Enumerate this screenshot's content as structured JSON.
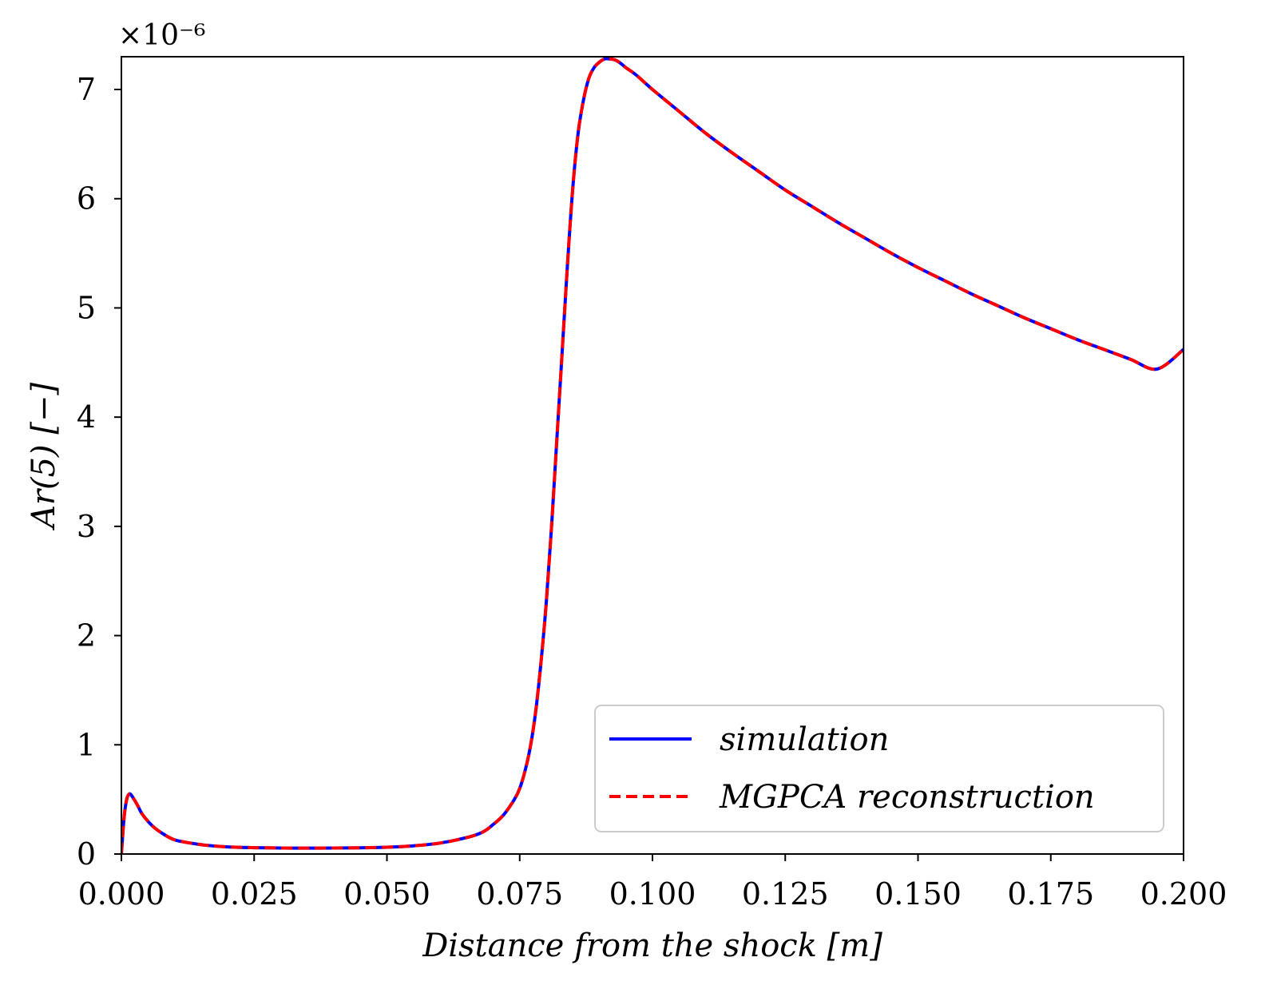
{
  "chart_data": {
    "type": "line",
    "title": "",
    "xlabel": "Distance from the shock [m]",
    "ylabel": "Ar(5) [−]",
    "y_offset_label": "×10⁻⁶",
    "xlim": [
      0.0,
      0.2
    ],
    "ylim": [
      0,
      7.3
    ],
    "grid": false,
    "legend_position": "lower-right",
    "x_ticks": [
      0.0,
      0.025,
      0.05,
      0.075,
      0.1,
      0.125,
      0.15,
      0.175,
      0.2
    ],
    "x_tick_labels": [
      "0.000",
      "0.025",
      "0.050",
      "0.075",
      "0.100",
      "0.125",
      "0.150",
      "0.175",
      "0.200"
    ],
    "y_ticks": [
      0,
      1,
      2,
      3,
      4,
      5,
      6,
      7
    ],
    "y_tick_labels": [
      "0",
      "1",
      "2",
      "3",
      "4",
      "5",
      "6",
      "7"
    ],
    "x": [
      0.0,
      0.0005,
      0.001,
      0.0015,
      0.002,
      0.003,
      0.004,
      0.006,
      0.008,
      0.01,
      0.013,
      0.016,
      0.02,
      0.025,
      0.03,
      0.035,
      0.04,
      0.045,
      0.05,
      0.055,
      0.06,
      0.065,
      0.068,
      0.07,
      0.072,
      0.074,
      0.075,
      0.076,
      0.077,
      0.078,
      0.079,
      0.08,
      0.081,
      0.082,
      0.083,
      0.084,
      0.085,
      0.086,
      0.087,
      0.088,
      0.089,
      0.09,
      0.091,
      0.092,
      0.093,
      0.094,
      0.095,
      0.097,
      0.1,
      0.105,
      0.11,
      0.115,
      0.12,
      0.125,
      0.13,
      0.135,
      0.14,
      0.145,
      0.15,
      0.155,
      0.16,
      0.165,
      0.17,
      0.175,
      0.18,
      0.185,
      0.19,
      0.195,
      0.2
    ],
    "series": [
      {
        "name": "simulation",
        "color": "#0000ff",
        "style": "solid",
        "values": [
          0.0,
          0.33,
          0.5,
          0.55,
          0.53,
          0.45,
          0.36,
          0.25,
          0.18,
          0.13,
          0.1,
          0.08,
          0.065,
          0.058,
          0.055,
          0.054,
          0.055,
          0.057,
          0.062,
          0.075,
          0.1,
          0.15,
          0.2,
          0.27,
          0.36,
          0.5,
          0.6,
          0.76,
          0.98,
          1.3,
          1.75,
          2.3,
          3.0,
          3.8,
          4.6,
          5.4,
          6.1,
          6.6,
          6.9,
          7.1,
          7.2,
          7.25,
          7.28,
          7.28,
          7.27,
          7.24,
          7.2,
          7.13,
          7.0,
          6.8,
          6.6,
          6.42,
          6.25,
          6.08,
          5.93,
          5.78,
          5.64,
          5.5,
          5.37,
          5.25,
          5.13,
          5.02,
          4.91,
          4.81,
          4.71,
          4.62,
          4.53,
          4.44,
          4.62
        ]
      },
      {
        "name": "MGPCA reconstruction",
        "color": "#ff0000",
        "style": "dashed",
        "values": [
          0.0,
          0.33,
          0.5,
          0.55,
          0.53,
          0.45,
          0.36,
          0.25,
          0.18,
          0.13,
          0.1,
          0.08,
          0.065,
          0.058,
          0.055,
          0.054,
          0.055,
          0.057,
          0.062,
          0.075,
          0.1,
          0.15,
          0.2,
          0.27,
          0.36,
          0.5,
          0.6,
          0.76,
          0.98,
          1.3,
          1.75,
          2.3,
          3.0,
          3.8,
          4.6,
          5.4,
          6.1,
          6.6,
          6.9,
          7.1,
          7.2,
          7.25,
          7.28,
          7.28,
          7.27,
          7.24,
          7.2,
          7.13,
          7.0,
          6.8,
          6.6,
          6.42,
          6.25,
          6.08,
          5.93,
          5.78,
          5.64,
          5.5,
          5.37,
          5.25,
          5.13,
          5.02,
          4.91,
          4.81,
          4.71,
          4.62,
          4.53,
          4.44,
          4.62
        ]
      }
    ]
  }
}
